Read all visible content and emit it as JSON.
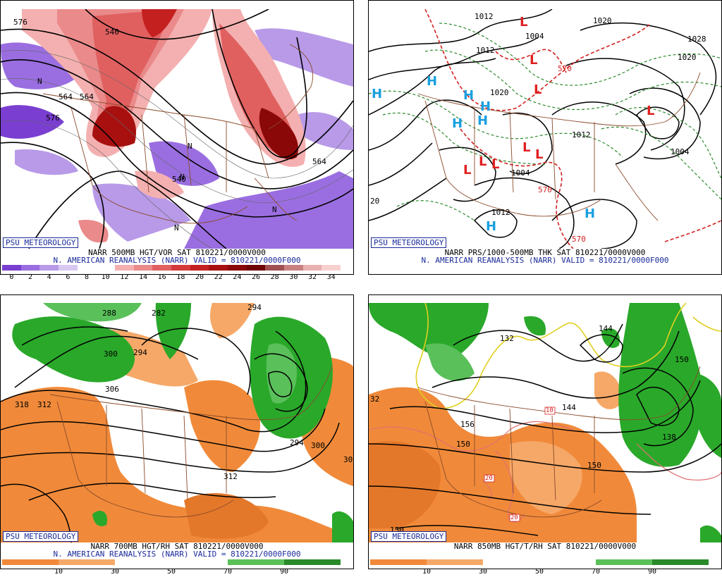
{
  "panels": {
    "p1": {
      "badge": "PSU METEOROLOGY",
      "caption1": "NARR 500MB HGT/VOR SAT 810221/0000V000",
      "caption2": "N. AMERICAN REANALYSIS (NARR) VALID = 810221/0000F000",
      "scale_ticks": [
        "0",
        "2",
        "4",
        "6",
        "8",
        "10",
        "12",
        "14",
        "16",
        "18",
        "20",
        "22",
        "24",
        "26",
        "28",
        "30",
        "32",
        "34"
      ],
      "scale_colors": [
        "#7a3fd0",
        "#9a6ee0",
        "#b89ae8",
        "#d8c8f2",
        "#ffffff",
        "#ffffff",
        "#f4b0b0",
        "#ea8a8a",
        "#e06060",
        "#d43a3a",
        "#c42020",
        "#a81010",
        "#8a0808",
        "#6e0404",
        "#a05050",
        "#c88080",
        "#e8b0b0",
        "#f7d0d0"
      ],
      "labels": [
        "576",
        "540",
        "564",
        "576",
        "564",
        "N",
        "N",
        "N",
        "N",
        "N",
        "540",
        "564"
      ]
    },
    "p2": {
      "badge": "PSU METEOROLOGY",
      "caption1": "NARR PRS/1000-500MB THK SAT 810221/0000V000",
      "caption2": "N. AMERICAN REANALYSIS (NARR) VALID = 810221/0000F000",
      "labels": [
        "1012",
        "1020",
        "1028",
        "1020",
        "1012",
        "1004",
        "1012",
        "1004",
        "1004",
        "1012",
        "1020",
        "570",
        "570",
        "570",
        "20"
      ],
      "highs": [
        "H",
        "H",
        "H",
        "H",
        "H",
        "H",
        "H",
        "H"
      ],
      "lows": [
        "L",
        "L",
        "L",
        "L",
        "L",
        "L",
        "L",
        "L",
        "L"
      ]
    },
    "p3": {
      "badge": "PSU METEOROLOGY",
      "caption1": "NARR 700MB HGT/RH SAT 810221/0000V000",
      "caption2": "N. AMERICAN REANALYSIS (NARR) VALID = 810221/0000F000",
      "scale_ticks": [
        "10",
        "30",
        "50",
        "70",
        "90"
      ],
      "labels": [
        "288",
        "282",
        "294",
        "300",
        "294",
        "306",
        "318",
        "312",
        "294",
        "300",
        "312",
        "30"
      ]
    },
    "p4": {
      "badge": "PSU METEOROLOGY",
      "caption1": "NARR 850MB HGT/T/RH SAT 810221/0000V000",
      "scale_ticks": [
        "10",
        "30",
        "50",
        "70",
        "90"
      ],
      "labels": [
        "132",
        "144",
        "150",
        "144",
        "156",
        "150",
        "150",
        "138",
        "150",
        "32",
        "10",
        "20",
        "20"
      ]
    }
  },
  "colors": {
    "contour": "#000000",
    "border": "#8b4a2a",
    "thickness_cold": "#2a8a2a",
    "thickness_warm": "#d42020",
    "high": "#1aa0e0",
    "low": "#e02020",
    "rh_dry": "#f08a3a",
    "rh_moist": "#2aa82a",
    "temp_zero": "#e0d020",
    "temp_warm": "#e07070"
  }
}
